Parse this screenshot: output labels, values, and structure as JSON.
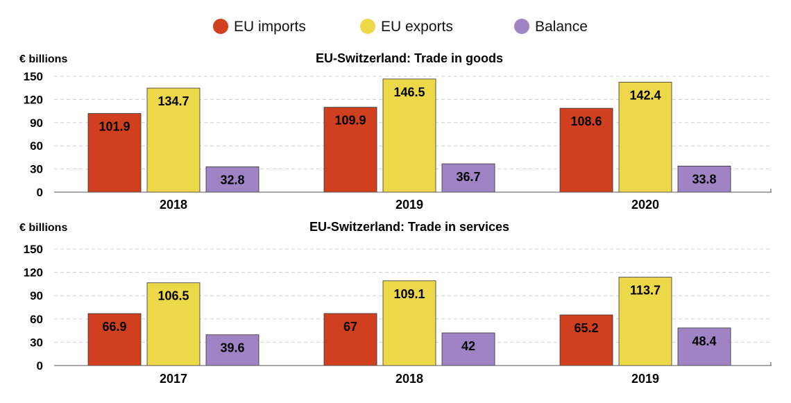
{
  "legend": [
    {
      "label": "EU imports",
      "color": "#d1401e"
    },
    {
      "label": "EU exports",
      "color": "#edd84a"
    },
    {
      "label": "Balance",
      "color": "#a083c4"
    }
  ],
  "chart_data": [
    {
      "type": "bar",
      "title": "EU-Switzerland: Trade in goods",
      "ylabel": "€ billions",
      "categories": [
        "2018",
        "2019",
        "2020"
      ],
      "series": [
        {
          "name": "EU imports",
          "values": [
            101.9,
            109.9,
            108.6
          ]
        },
        {
          "name": "EU exports",
          "values": [
            134.7,
            146.5,
            142.4
          ]
        },
        {
          "name": "Balance",
          "values": [
            32.8,
            36.7,
            33.8
          ]
        }
      ],
      "value_labels": [
        [
          "101.9",
          "109.9",
          "108.6"
        ],
        [
          "134.7",
          "146.5",
          "142.4"
        ],
        [
          "32.8",
          "36.7",
          "33.8"
        ]
      ],
      "yticks": [
        0,
        30,
        60,
        90,
        120,
        150
      ],
      "ylim": [
        0,
        150
      ],
      "grid": true,
      "legend_position": "top"
    },
    {
      "type": "bar",
      "title": "EU-Switzerland: Trade in services",
      "ylabel": "€ billions",
      "categories": [
        "2017",
        "2018",
        "2019"
      ],
      "series": [
        {
          "name": "EU imports",
          "values": [
            66.9,
            67,
            65.2
          ]
        },
        {
          "name": "EU exports",
          "values": [
            106.5,
            109.1,
            113.7
          ]
        },
        {
          "name": "Balance",
          "values": [
            39.6,
            42,
            48.4
          ]
        }
      ],
      "value_labels": [
        [
          "66.9",
          "67",
          "65.2"
        ],
        [
          "106.5",
          "109.1",
          "113.7"
        ],
        [
          "39.6",
          "42",
          "48.4"
        ]
      ],
      "yticks": [
        0,
        30,
        60,
        90,
        120,
        150
      ],
      "ylim": [
        0,
        150
      ],
      "grid": true,
      "legend_position": "top"
    }
  ]
}
